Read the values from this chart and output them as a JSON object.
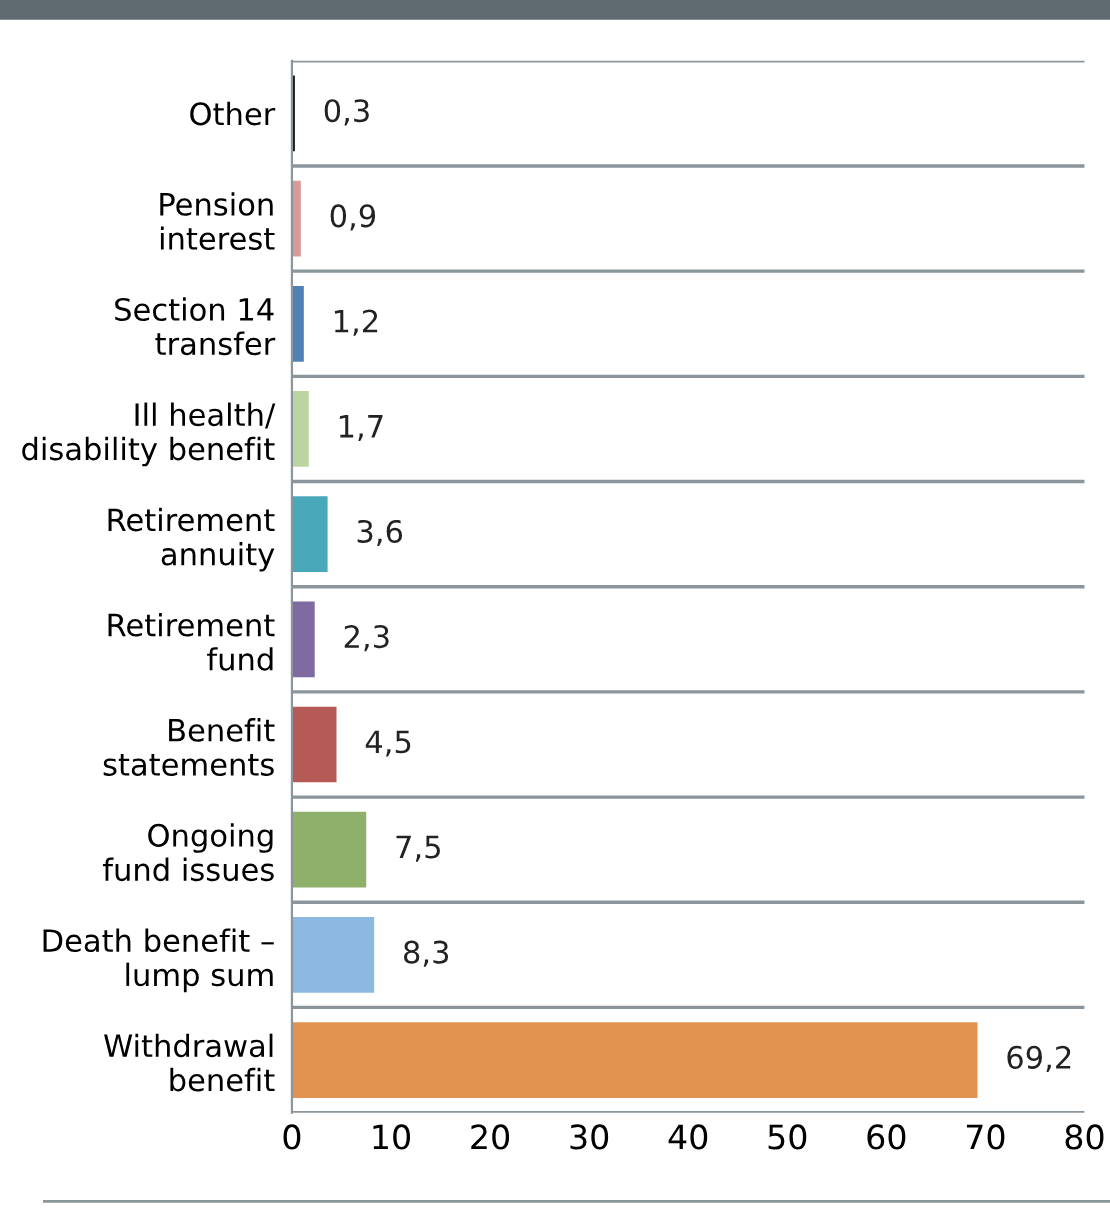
{
  "chart_data": {
    "type": "bar",
    "orientation": "horizontal",
    "categories": [
      "Other",
      "Pension\ninterest",
      "Section 14\ntransfer",
      "Ill health/\ndisability benefit",
      "Retirement\nannuity",
      "Retirement\nfund",
      "Benefit\nstatements",
      "Ongoing\nfund issues",
      "Death benefit –\nlump sum",
      "Withdrawal\nbenefit"
    ],
    "values": [
      0.3,
      0.9,
      1.2,
      1.7,
      3.6,
      2.3,
      4.5,
      7.5,
      8.3,
      69.2
    ],
    "value_labels": [
      "0,3",
      "0,9",
      "1,2",
      "1,7",
      "3,6",
      "2,3",
      "4,5",
      "7,5",
      "8,3",
      "69,2"
    ],
    "colors": [
      "#1a1a1a",
      "#d99a9a",
      "#4f81b5",
      "#bcd4a3",
      "#4aa8bb",
      "#7f6aa2",
      "#b55a56",
      "#8fb06a",
      "#8db8e0",
      "#e39350"
    ],
    "xlim": [
      0,
      80
    ],
    "xticks": [
      0,
      10,
      20,
      30,
      40,
      50,
      60,
      70,
      80
    ],
    "grid": "y",
    "legend": false
  }
}
